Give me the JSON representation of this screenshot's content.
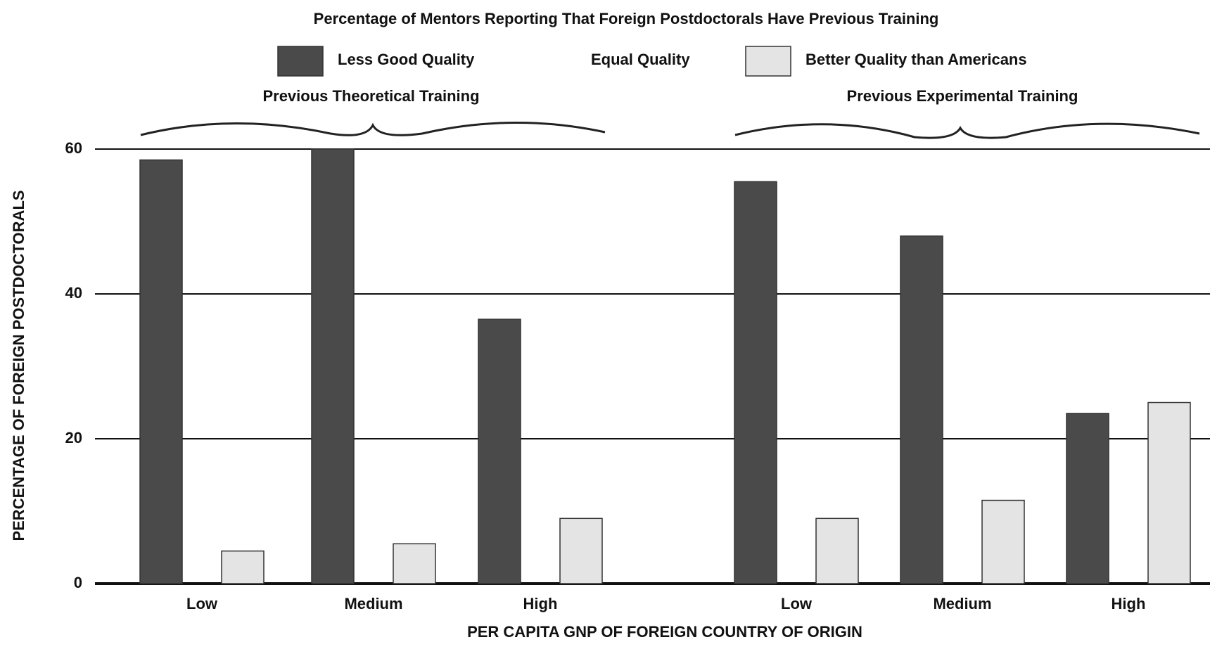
{
  "chart_data": {
    "type": "bar",
    "title": "Percentage of Mentors Reporting That Foreign Postdoctorals Have Previous Training",
    "xlabel": "PER CAPITA GNP OF FOREIGN COUNTRY OF ORIGIN",
    "ylabel": "PERCENTAGE OF FOREIGN POSTDOCTORALS",
    "ylim": [
      0,
      60
    ],
    "yticks": [
      0,
      20,
      40,
      60
    ],
    "grid": true,
    "legend": [
      {
        "name": "Less Good Quality",
        "color": "#4a4a4a"
      },
      {
        "name": "Equal Quality",
        "color": "none"
      },
      {
        "name": "Better Quality than Americans",
        "color": "#e4e4e4"
      }
    ],
    "panels": [
      {
        "title": "Previous Theoretical Training",
        "categories": [
          "Low",
          "Medium",
          "High"
        ],
        "series": [
          {
            "values": [
              58.5,
              60,
              36.5
            ]
          },
          {
            "values": [
              null,
              null,
              null
            ]
          },
          {
            "values": [
              4.5,
              5.5,
              9
            ]
          }
        ]
      },
      {
        "title": "Previous Experimental Training",
        "categories": [
          "Low",
          "Medium",
          "High"
        ],
        "series": [
          {
            "values": [
              55.5,
              48,
              23.5
            ]
          },
          {
            "values": [
              null,
              null,
              null
            ]
          },
          {
            "values": [
              9,
              11.5,
              25
            ]
          }
        ]
      }
    ]
  }
}
